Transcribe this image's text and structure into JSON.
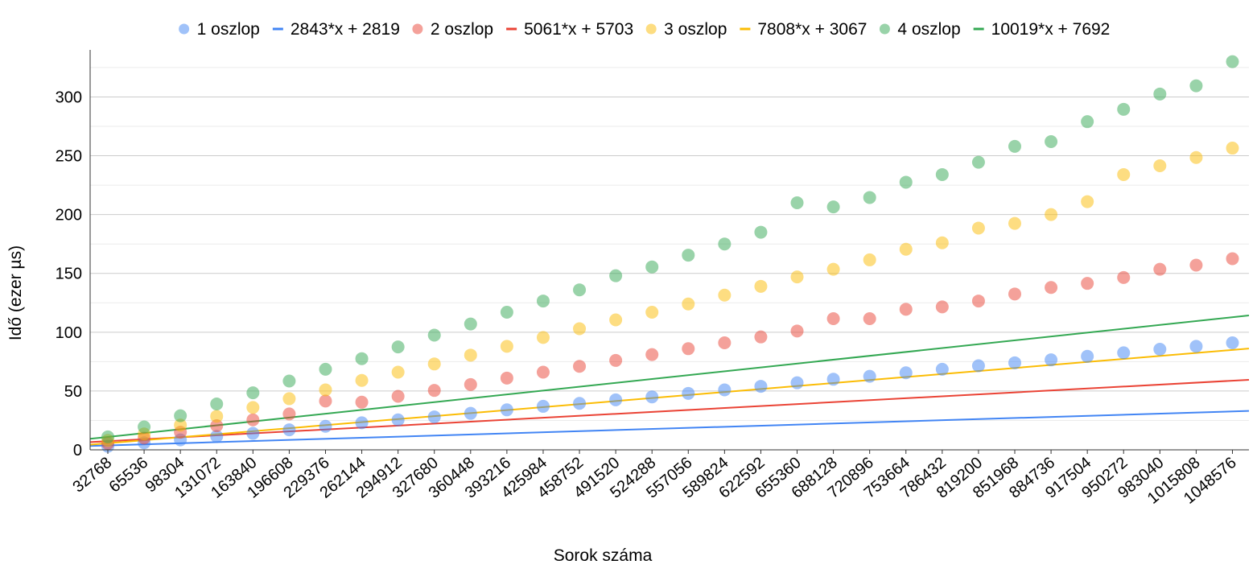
{
  "chart_data": {
    "type": "scatter",
    "xlabel": "Sorok száma",
    "ylabel": "Idő (ezer µs)",
    "categories": [
      "32768",
      "65536",
      "98304",
      "131072",
      "163840",
      "196608",
      "229376",
      "262144",
      "294912",
      "327680",
      "360448",
      "393216",
      "425984",
      "458752",
      "491520",
      "524288",
      "557056",
      "589824",
      "622592",
      "655360",
      "688128",
      "720896",
      "753664",
      "786432",
      "819200",
      "851968",
      "884736",
      "917504",
      "950272",
      "983040",
      "1015808",
      "1048576"
    ],
    "ylim": [
      0,
      340
    ],
    "yticks": [
      "0",
      "50",
      "100",
      "150",
      "200",
      "250",
      "300"
    ],
    "grid": true,
    "legend_position": "top",
    "series": [
      {
        "name": "1 oszlop",
        "color": "#4285f4",
        "trendline": {
          "label": "2843*x + 2819",
          "slope": 2843,
          "intercept": 2819
        },
        "values": [
          3,
          6,
          8.5,
          11.5,
          14,
          17,
          20,
          23,
          25.5,
          28,
          31,
          34,
          37,
          39.5,
          42.5,
          45,
          48,
          51,
          54,
          57,
          60,
          62.5,
          65.5,
          68.5,
          71.5,
          74,
          76.5,
          79.5,
          82.5,
          85.5,
          88,
          91
        ]
      },
      {
        "name": "2 oszlop",
        "color": "#ea4335",
        "trendline": {
          "label": "5061*x + 5703",
          "slope": 5061,
          "intercept": 5703
        },
        "values": [
          5.5,
          10,
          15,
          20.5,
          25.5,
          30.5,
          41.5,
          40.5,
          45.5,
          50.5,
          55.5,
          61,
          66,
          71,
          76,
          81,
          86,
          91,
          96,
          101,
          111.5,
          111.5,
          119.5,
          121.5,
          126.5,
          132.5,
          138,
          141.5,
          146.5,
          153.5,
          157,
          162.5
        ]
      },
      {
        "name": "3 oszlop",
        "color": "#fbbc04",
        "trendline": {
          "label": "7808*x + 3067",
          "slope": 7808,
          "intercept": 3067
        },
        "values": [
          8,
          13.5,
          21,
          28.5,
          36,
          43.5,
          51,
          59,
          66,
          73,
          80.5,
          88,
          95.5,
          103,
          110.5,
          117,
          124,
          131.5,
          139,
          147,
          153.5,
          161.5,
          170.5,
          176,
          188.5,
          192.5,
          200,
          211,
          234,
          241.5,
          248.5,
          256.5
        ]
      },
      {
        "name": "4 oszlop",
        "color": "#34a853",
        "trendline": {
          "label": "10019*x + 7692",
          "slope": 10019,
          "intercept": 7692
        },
        "values": [
          11,
          19.5,
          29,
          39,
          48.5,
          58.5,
          68.5,
          77.5,
          87.5,
          97.5,
          107,
          117,
          126.5,
          136,
          148,
          155.5,
          165.5,
          175,
          185,
          210,
          206.5,
          214.5,
          227.5,
          234,
          244.5,
          258,
          262,
          279,
          289.5,
          302.5,
          309.5,
          330
        ]
      }
    ]
  }
}
